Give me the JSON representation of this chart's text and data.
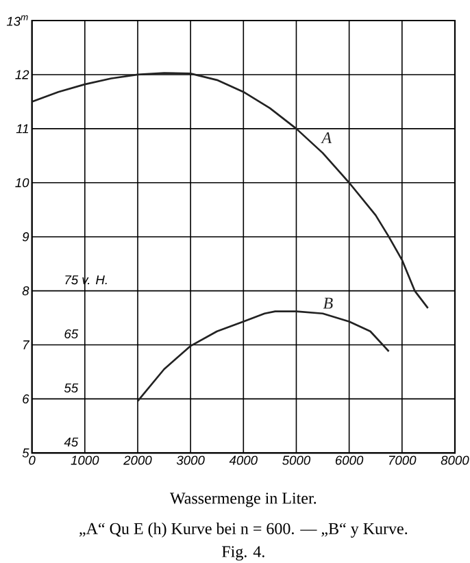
{
  "chart_data": {
    "type": "line",
    "xlabel": "Wassermenge in Liter.",
    "annotations": [
      "„A“ Qu E (h) Kurve bei n = 600. — „B“ y Kurve.",
      "Fig. 4."
    ],
    "xlim": [
      0,
      8000
    ],
    "xticks": [
      0,
      1000,
      2000,
      3000,
      4000,
      5000,
      6000,
      7000,
      8000
    ],
    "ylim": [
      5,
      13
    ],
    "yticks": [
      5,
      6,
      7,
      8,
      9,
      10,
      11,
      12,
      {
        "value": 13,
        "label": "13$^{m}$"
      }
    ],
    "y2lim": [
      45,
      125
    ],
    "y2ticks": [
      45,
      55,
      65,
      {
        "value": 75,
        "label": "75 v. H."
      }
    ],
    "grid": true,
    "series": [
      {
        "name": "A",
        "color": "#222222",
        "x": [
          0,
          500,
          1000,
          1500,
          2000,
          2500,
          3000,
          3500,
          4000,
          4500,
          5000,
          5500,
          6000,
          6500,
          6750,
          7000,
          7240,
          7490
        ],
        "values": [
          11.5,
          11.68,
          11.82,
          11.93,
          12.0,
          12.03,
          12.02,
          11.9,
          11.68,
          11.38,
          11.0,
          10.55,
          10.0,
          9.4,
          9.0,
          8.57,
          8.0,
          7.68
        ]
      },
      {
        "name": "B",
        "color": "#222222",
        "axis": "y2",
        "x": [
          2000,
          2500,
          3000,
          3500,
          4000,
          4400,
          4600,
          5000,
          5500,
          6000,
          6400,
          6750
        ],
        "values": [
          54.6,
          60.5,
          64.8,
          67.5,
          69.3,
          70.8,
          71.2,
          71.2,
          70.8,
          69.3,
          67.5,
          63.8
        ]
      }
    ]
  }
}
